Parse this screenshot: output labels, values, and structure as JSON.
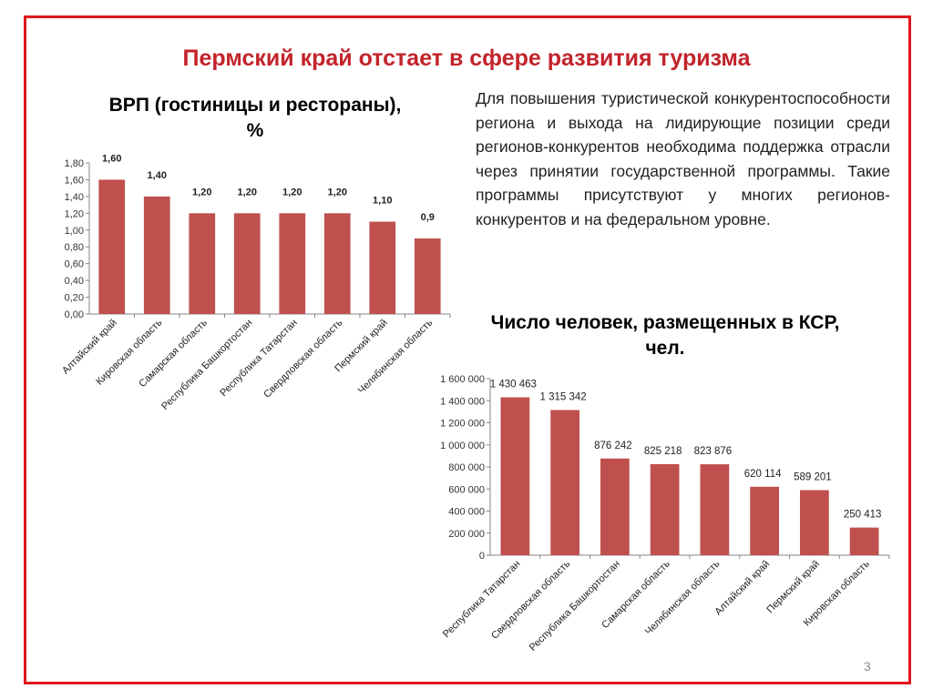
{
  "slide": {
    "title": "Пермский край отстает в сфере развития туризма",
    "page_number": "3",
    "description": "Для повышения туристической конкурентоспособности региона и выхода на лидирующие позиции среди регионов-конкурентов необходима поддержка отрасли через принятии государственной программы. Такие программы присутствуют у многих регионов-конкурентов и на федеральном уровне."
  },
  "colors": {
    "bar": "#c0504d",
    "frame": "#e0141e",
    "title": "#c3232b"
  },
  "chart_data": [
    {
      "type": "bar",
      "title": "ВРП (гостиницы и рестораны), %",
      "title_lines": [
        "ВРП (гостиницы и рестораны),",
        "%"
      ],
      "categories": [
        "Алтайский край",
        "Кировская область",
        "Самарская область",
        "Республика Башкортостан",
        "Республика Татарстан",
        "Свердловская область",
        "Пермский край",
        "Челябинская область"
      ],
      "values": [
        1.6,
        1.4,
        1.2,
        1.2,
        1.2,
        1.2,
        1.1,
        0.9
      ],
      "data_labels": [
        "1,60",
        "1,40",
        "1,20",
        "1,20",
        "1,20",
        "1,20",
        "1,10",
        "0,9"
      ],
      "ylim": [
        0,
        1.8
      ],
      "yticks": [
        0,
        0.2,
        0.4,
        0.6,
        0.8,
        1.0,
        1.2,
        1.4,
        1.6,
        1.8
      ],
      "ytick_labels": [
        "0,00",
        "0,20",
        "0,40",
        "0,60",
        "0,80",
        "1,00",
        "1,20",
        "1,40",
        "1,60",
        "1,80"
      ],
      "xlabel": "",
      "ylabel": "",
      "grid": false,
      "legend": "none"
    },
    {
      "type": "bar",
      "title": "Число человек, размещенных в КСР, чел.",
      "title_lines": [
        "Число человек, размещенных в КСР,",
        "чел."
      ],
      "categories": [
        "Республика Татарстан",
        "Свердловская область",
        "Республика Башкортостан",
        "Самарская область",
        "Челябинская область",
        "Алтайский край",
        "Пермский край",
        "Кировская область"
      ],
      "values": [
        1430463,
        1315342,
        876242,
        825218,
        823876,
        620114,
        589201,
        250413
      ],
      "data_labels": [
        "1 430 463",
        "1 315 342",
        "876 242",
        "825 218",
        "823 876",
        "620 114",
        "589 201",
        "250 413"
      ],
      "ylim": [
        0,
        1600000
      ],
      "yticks": [
        0,
        200000,
        400000,
        600000,
        800000,
        1000000,
        1200000,
        1400000,
        1600000
      ],
      "ytick_labels": [
        "0",
        "200 000",
        "400 000",
        "600 000",
        "800 000",
        "1 000 000",
        "1 200 000",
        "1 400 000",
        "1 600 000"
      ],
      "xlabel": "",
      "ylabel": "",
      "grid": false,
      "legend": "none"
    }
  ]
}
